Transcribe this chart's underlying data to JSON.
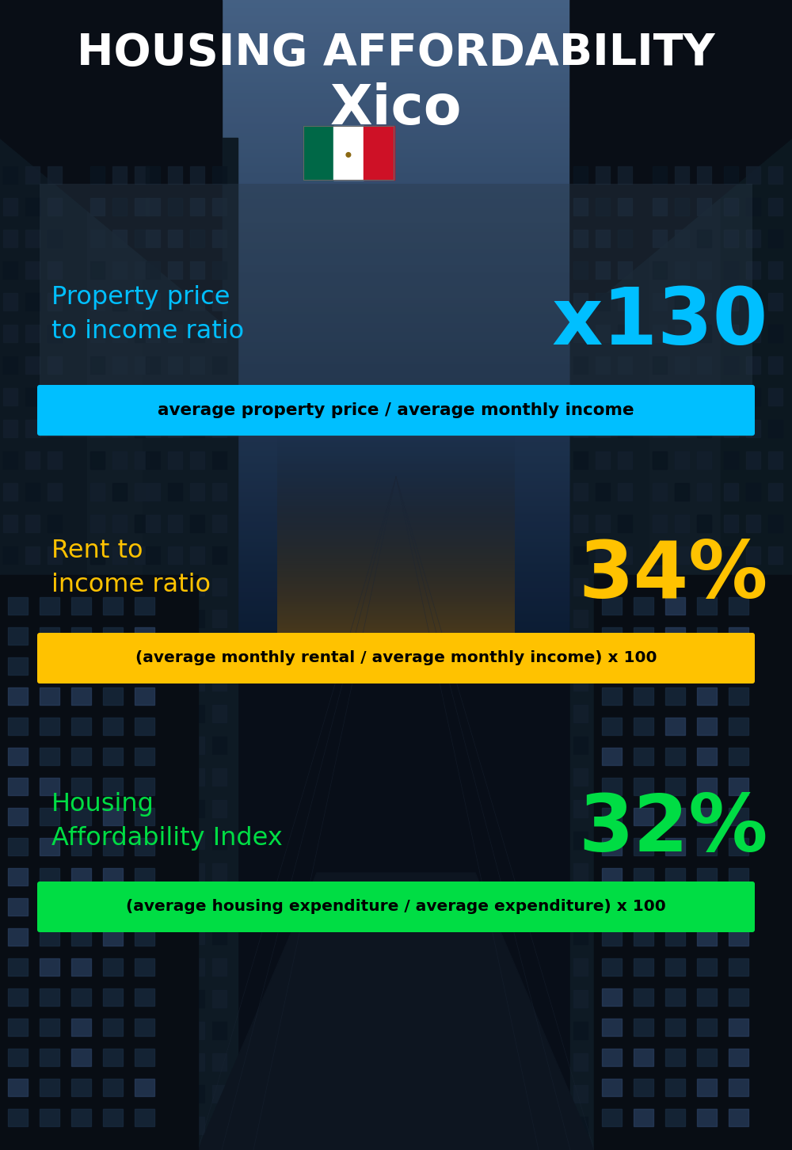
{
  "title_line1": "HOUSING AFFORDABILITY",
  "title_line2": "Xico",
  "bg_color": "#071018",
  "title_color": "#ffffff",
  "city_color": "#ffffff",
  "metric1_label": "Property price\nto income ratio",
  "metric1_value": "x130",
  "metric1_label_color": "#00bfff",
  "metric1_value_color": "#00bfff",
  "metric1_band_color": "#00bfff",
  "metric1_band_text": "average property price / average monthly income",
  "metric1_band_text_color": "#000000",
  "metric2_label": "Rent to\nincome ratio",
  "metric2_value": "34%",
  "metric2_label_color": "#ffc200",
  "metric2_value_color": "#ffc200",
  "metric2_band_color": "#ffc200",
  "metric2_band_text": "(average monthly rental / average monthly income) x 100",
  "metric2_band_text_color": "#000000",
  "metric3_label": "Housing\nAffordability Index",
  "metric3_value": "32%",
  "metric3_label_color": "#00dd44",
  "metric3_value_color": "#00dd44",
  "metric3_band_color": "#00dd44",
  "metric3_band_text": "(average housing expenditure / average expenditure) x 100",
  "metric3_band_text_color": "#000000",
  "flag_green": "#006847",
  "flag_white": "#ffffff",
  "flag_red": "#ce1126",
  "panel1_color": "#3a4a5a",
  "panel1_alpha": 0.45,
  "section_divider_color": "#1a2a3a"
}
